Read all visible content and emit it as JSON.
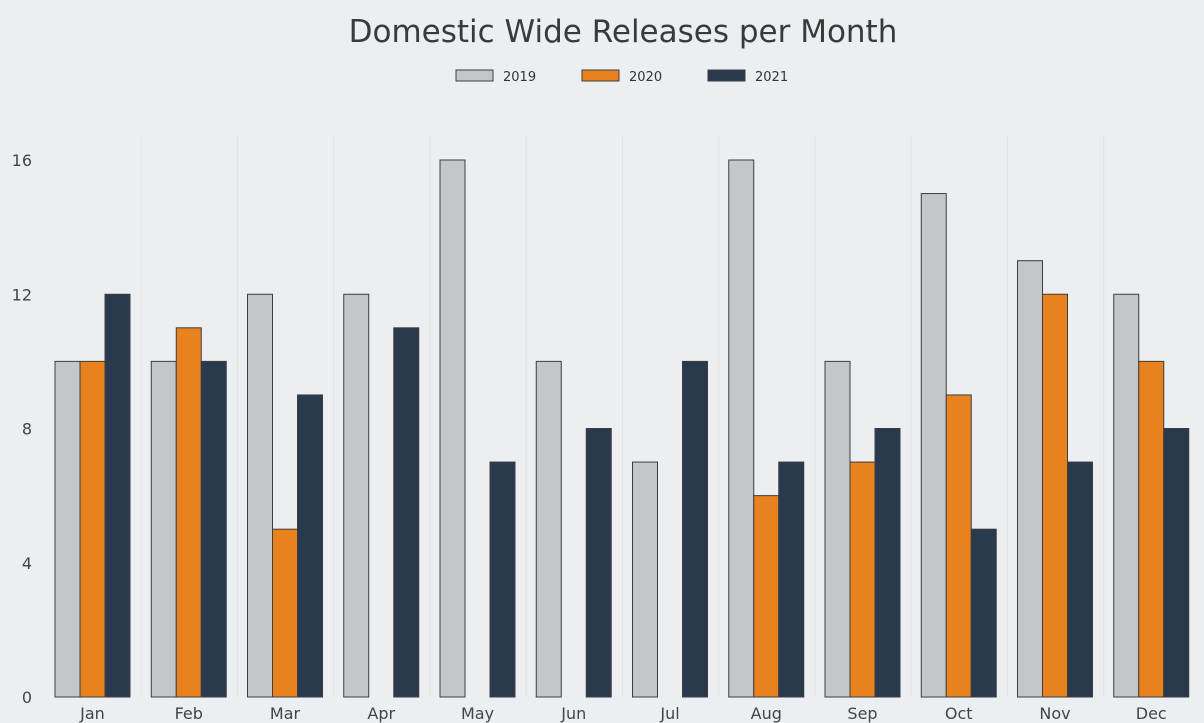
{
  "chart_data": {
    "type": "bar",
    "title": "Domestic Wide Releases per Month",
    "xlabel": "",
    "ylabel": "",
    "categories": [
      "Jan",
      "Feb",
      "Mar",
      "Apr",
      "May",
      "Jun",
      "Jul",
      "Aug",
      "Sep",
      "Oct",
      "Nov",
      "Dec"
    ],
    "series": [
      {
        "name": "2019",
        "color": "#c4c7ca",
        "values": [
          10,
          10,
          12,
          12,
          16,
          10,
          7,
          16,
          10,
          15,
          13,
          12
        ]
      },
      {
        "name": "2020",
        "color": "#e8821e",
        "values": [
          10,
          11,
          5,
          0,
          0,
          0,
          0,
          6,
          7,
          9,
          12,
          10
        ]
      },
      {
        "name": "2021",
        "color": "#2a3a4e",
        "values": [
          12,
          10,
          9,
          11,
          7,
          8,
          10,
          7,
          8,
          5,
          7,
          8
        ]
      }
    ],
    "ylim": [
      0,
      16
    ],
    "yticks": [
      0,
      4,
      8,
      12,
      16
    ],
    "grid": "vertical",
    "legend_position": "top-center"
  },
  "colors": {
    "background": "#eceff1",
    "grid": "#e0e3e6",
    "bar_edge": "#3d3d3d"
  }
}
